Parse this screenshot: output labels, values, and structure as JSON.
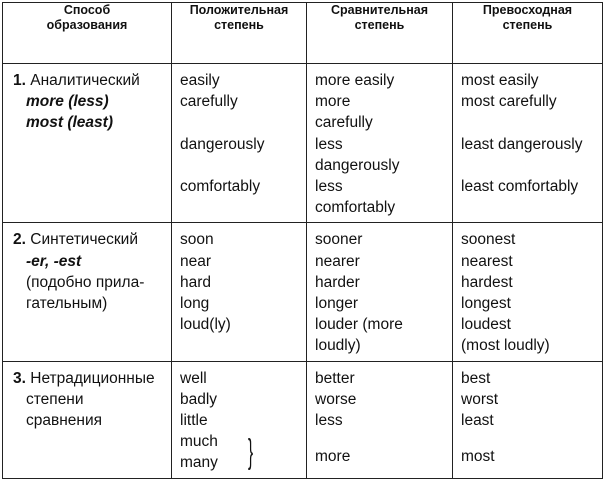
{
  "headers": {
    "method": [
      "Способ",
      "образования"
    ],
    "positive": [
      "Положительная",
      "степень"
    ],
    "comparative": [
      "Сравнительная",
      "степень"
    ],
    "superlative": [
      "Превосходная",
      "степень"
    ]
  },
  "rows": [
    {
      "number": "1.",
      "method": [
        "Аналитический"
      ],
      "method_em": [
        "more (less)",
        "most (least)"
      ],
      "positive": [
        "easily",
        "carefully",
        "",
        "dangerously",
        "",
        "comfortably"
      ],
      "comparative": [
        "more easily",
        "more",
        "carefully",
        "less",
        "dangerously",
        "less",
        "comfortably"
      ],
      "superlative": [
        "most easily",
        "most carefully",
        "",
        "least dangerously",
        "",
        "least comfortably"
      ]
    },
    {
      "number": "2.",
      "method": [
        "Синтетический"
      ],
      "method_em": [
        "-er, -est"
      ],
      "method_tail": [
        "(подобно прила-",
        "гательным)"
      ],
      "positive": [
        "soon",
        "near",
        "hard",
        "long",
        "loud(ly)"
      ],
      "comparative": [
        "sooner",
        "nearer",
        "harder",
        "longer",
        "louder (more",
        "loudly)"
      ],
      "superlative": [
        "soonest",
        "nearest",
        "hardest",
        "longest",
        "loudest",
        "(most loudly)"
      ]
    },
    {
      "number": "3.",
      "method": [
        "Нетрадиционные",
        "степени",
        "сравнения"
      ],
      "positive": [
        "well",
        "badly",
        "little",
        "much",
        "many"
      ],
      "comparative": [
        "better",
        "worse",
        "less",
        "",
        "more"
      ],
      "superlative": [
        "best",
        "worst",
        "least",
        "",
        "most"
      ],
      "brace": "}"
    }
  ]
}
